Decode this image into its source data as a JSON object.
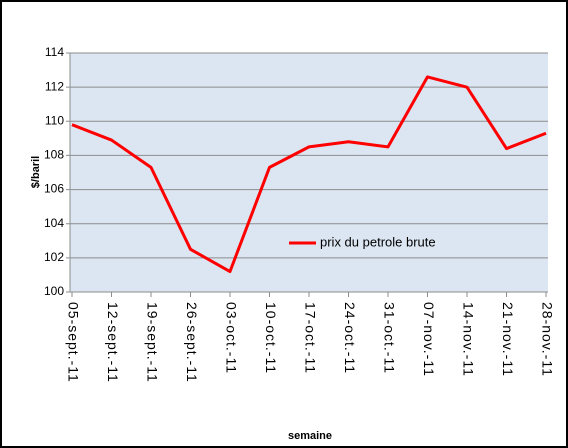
{
  "chart_data": {
    "type": "line",
    "categories": [
      "05-sept.-11",
      "12-sept.-11",
      "19-sept.-11",
      "26-sept.-11",
      "03-oct.-11",
      "10-oct.-11",
      "17-oct.-11",
      "24-oct.-11",
      "31-oct.-11",
      "07-nov.-11",
      "14-nov.-11",
      "21-nov.-11",
      "28-nov.-11"
    ],
    "series": [
      {
        "name": "prix du petrole brute",
        "color": "#ff0000",
        "values": [
          109.8,
          108.9,
          107.3,
          102.5,
          101.2,
          107.3,
          108.5,
          108.8,
          108.5,
          112.6,
          112.0,
          108.4,
          109.3
        ]
      }
    ],
    "ylim": [
      100,
      114
    ],
    "yticks": [
      100,
      102,
      104,
      106,
      108,
      110,
      112,
      114
    ],
    "xlabel": "semaine",
    "ylabel": "$/baril",
    "grid": true,
    "legend": "inside-lower-center"
  }
}
